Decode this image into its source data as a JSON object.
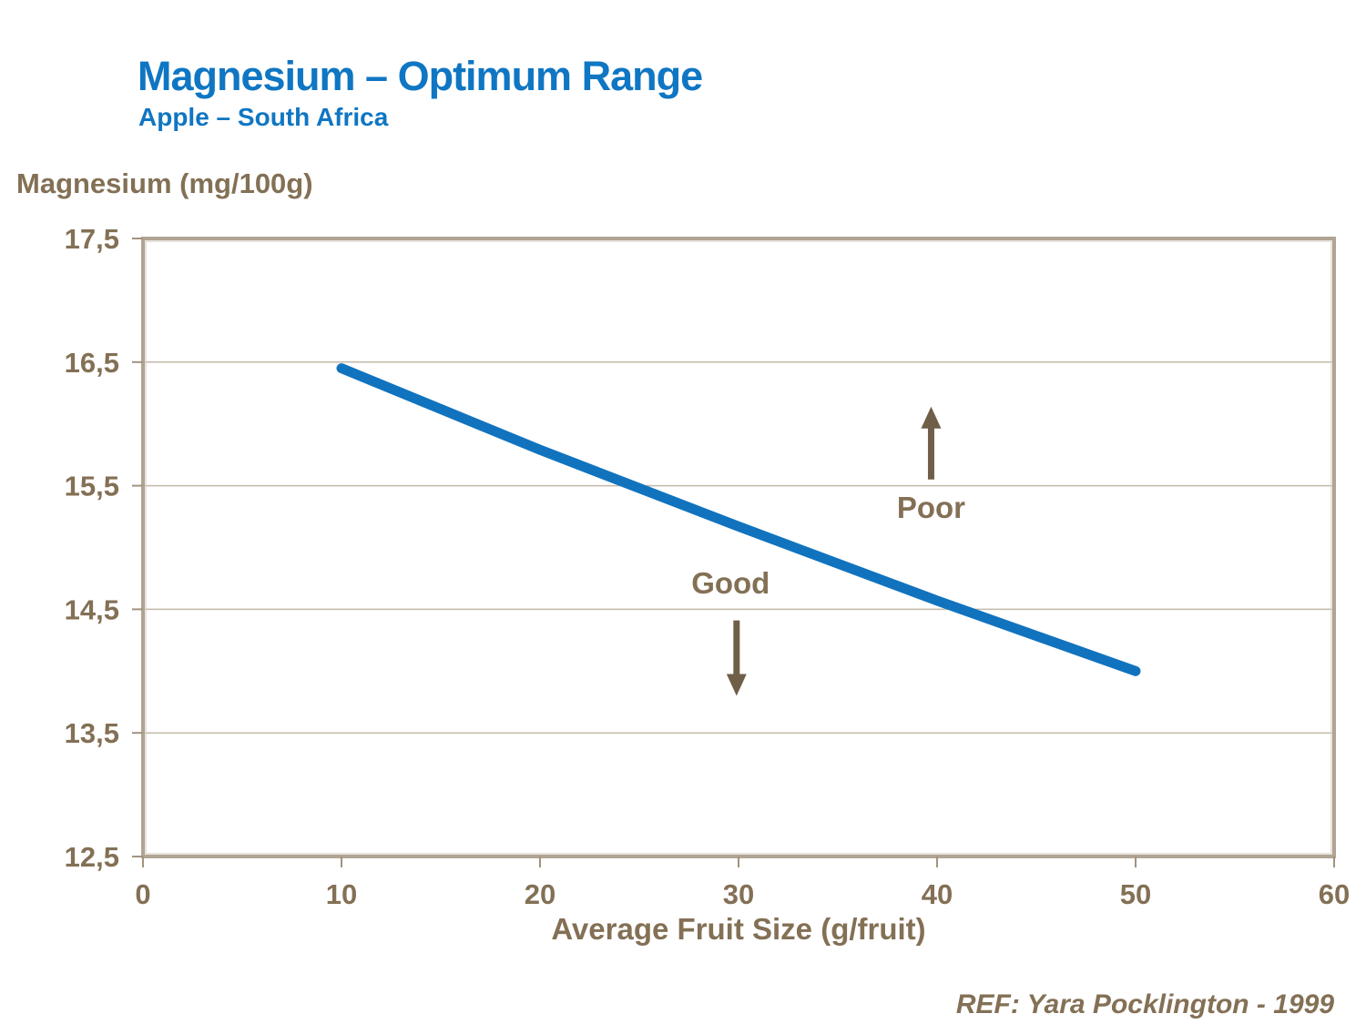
{
  "header": {
    "title": "Magnesium – Optimum Range",
    "subtitle": "Apple – South Africa"
  },
  "footer": {
    "reference": "REF: Yara Pocklington - 1999"
  },
  "colors": {
    "title_blue": "#0F76C3",
    "line_blue": "#1173BE",
    "text_brown": "#837055",
    "arrow_brown": "#6F5F48",
    "axis_border": "#B1A493",
    "axis_border_inner": "#D8D0C4",
    "gridline": "#C3B9A9",
    "tick": "#A2937F",
    "background": "#FFFFFF"
  },
  "chart_data": {
    "type": "line",
    "title": "Magnesium – Optimum Range",
    "subtitle": "Apple – South Africa",
    "ylabel": "Magnesium (mg/100g)",
    "xlabel": "Average Fruit Size (g/fruit)",
    "xlim": [
      0,
      60
    ],
    "ylim": [
      12.5,
      17.5
    ],
    "x_tick_values": [
      0,
      10,
      20,
      30,
      40,
      50,
      60
    ],
    "x_tick_labels": [
      "0",
      "10",
      "20",
      "30",
      "40",
      "50",
      "60"
    ],
    "y_tick_values": [
      17.5,
      16.5,
      15.5,
      14.5,
      13.5,
      12.5
    ],
    "y_tick_labels": [
      "17,5",
      "16,5",
      "15,5",
      "14,5",
      "13,5",
      "12,5"
    ],
    "grid": "horizontal",
    "legend": "none",
    "series": [
      {
        "name": "optimum-range-line",
        "color": "#1173BE",
        "stroke_width": 11,
        "points": [
          [
            10,
            16.45
          ],
          [
            20,
            15.79
          ],
          [
            30,
            15.17
          ],
          [
            40,
            14.57
          ],
          [
            50,
            14.0
          ]
        ]
      }
    ],
    "annotations": [
      {
        "text": "Poor",
        "x": 39.7,
        "y": 15.32,
        "arrow": {
          "x": 39.7,
          "y_from": 15.55,
          "y_to": 16.14,
          "direction": "up"
        }
      },
      {
        "text": "Good",
        "x": 29.6,
        "y": 14.71,
        "arrow": {
          "x": 29.9,
          "y_from": 14.41,
          "y_to": 13.8,
          "direction": "down"
        }
      }
    ]
  }
}
